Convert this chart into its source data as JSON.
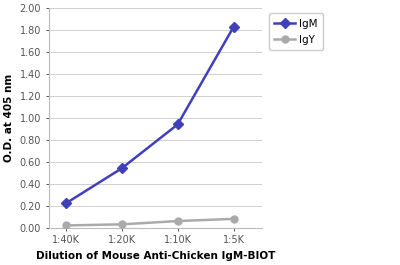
{
  "x_labels": [
    "1:40K",
    "1:20K",
    "1:10K",
    "1:5K"
  ],
  "x_positions": [
    0,
    1,
    2,
    3
  ],
  "IgM_values": [
    0.22,
    0.54,
    0.94,
    1.83
  ],
  "IgY_values": [
    0.02,
    0.03,
    0.06,
    0.08
  ],
  "IgM_color": "#4040bb",
  "IgY_color": "#aaaaaa",
  "xlabel": "Dilution of Mouse Anti-Chicken IgM-BIOT",
  "ylabel": "O.D. at 405 nm",
  "ylim": [
    0.0,
    2.0
  ],
  "yticks": [
    0.0,
    0.2,
    0.4,
    0.6,
    0.8,
    1.0,
    1.2,
    1.4,
    1.6,
    1.8,
    2.0
  ],
  "background_color": "#ffffff",
  "grid_color": "#d0d0d0",
  "marker_IgM": "D",
  "marker_IgY": "o",
  "linewidth": 1.8,
  "markersize": 5,
  "xlabel_fontsize": 7.5,
  "ylabel_fontsize": 7.5,
  "tick_fontsize": 7,
  "legend_fontsize": 7.5
}
